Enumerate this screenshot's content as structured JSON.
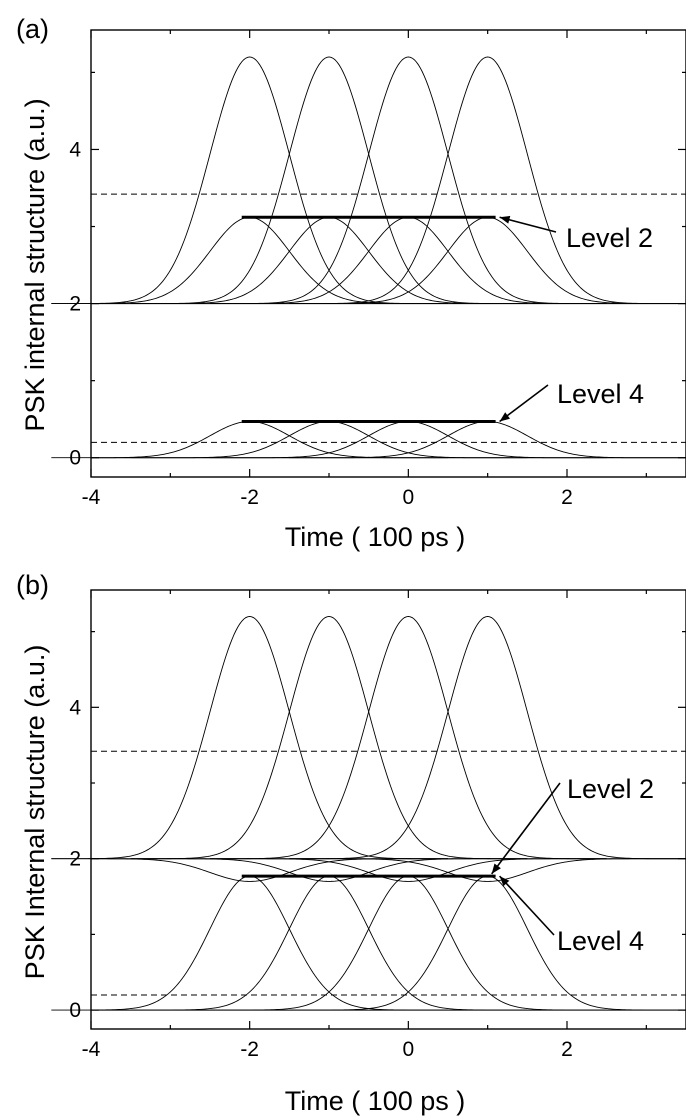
{
  "chart_data": [
    {
      "type": "line",
      "panel_label": "(a)",
      "xlabel": "Time ( 100 ps )",
      "ylabel": "PSK internal structure (a.u.)",
      "xlim": [
        -4,
        3.5
      ],
      "ylim": [
        -0.25,
        5.55
      ],
      "xticks": [
        -4,
        -2,
        0,
        2
      ],
      "yticks": [
        0,
        2,
        4
      ],
      "grid": false,
      "series": [
        {
          "kind": "gaussian",
          "baseline": 2,
          "amplitude": 3.2,
          "centers": [
            -2,
            -1,
            0,
            1
          ],
          "sigma": 0.5
        },
        {
          "kind": "gaussian",
          "baseline": 2,
          "amplitude": 1.12,
          "centers": [
            -2,
            -1,
            0,
            1
          ],
          "sigma": 0.5
        },
        {
          "kind": "gaussian",
          "baseline": 0,
          "amplitude": 0.47,
          "centers": [
            -2,
            -1,
            0,
            1
          ],
          "sigma": 0.5
        }
      ],
      "dashed_lines": [
        3.42,
        0.2
      ],
      "baselines": [
        2,
        0
      ],
      "thick_lines": [
        {
          "y": 3.12,
          "x": [
            -2.1,
            1.1
          ]
        },
        {
          "y": 0.47,
          "x": [
            -2.1,
            1.1
          ]
        }
      ],
      "annotations": [
        {
          "text": "Level 2",
          "target": [
            1.1,
            3.12
          ]
        },
        {
          "text": "Level 4",
          "target": [
            1.1,
            0.47
          ]
        }
      ]
    },
    {
      "type": "line",
      "panel_label": "(b)",
      "xlabel": "Time ( 100 ps )",
      "ylabel": "PSK Internal structure (a.u.)",
      "xlim": [
        -4,
        3.5
      ],
      "ylim": [
        -0.25,
        5.55
      ],
      "xticks": [
        -4,
        -2,
        0,
        2
      ],
      "yticks": [
        0,
        2,
        4
      ],
      "grid": false,
      "series": [
        {
          "kind": "gaussian",
          "baseline": 2,
          "amplitude": 3.2,
          "centers": [
            -2,
            -1,
            0,
            1
          ],
          "sigma": 0.5
        },
        {
          "kind": "gaussian",
          "baseline": 2,
          "amplitude": -0.3,
          "centers": [
            -2,
            -1,
            0,
            1
          ],
          "sigma": 0.5
        },
        {
          "kind": "gaussian",
          "baseline": 0,
          "amplitude": 1.77,
          "centers": [
            -2,
            -1,
            0,
            1
          ],
          "sigma": 0.5
        }
      ],
      "dashed_lines": [
        3.42,
        0.2
      ],
      "baselines": [
        2,
        0
      ],
      "thick_lines": [
        {
          "y": 1.77,
          "x": [
            -2.1,
            1.1
          ]
        }
      ],
      "annotations": [
        {
          "text": "Level 2",
          "target": [
            1.0,
            1.8
          ]
        },
        {
          "text": "Level 4",
          "target": [
            1.1,
            1.77
          ]
        }
      ]
    }
  ]
}
